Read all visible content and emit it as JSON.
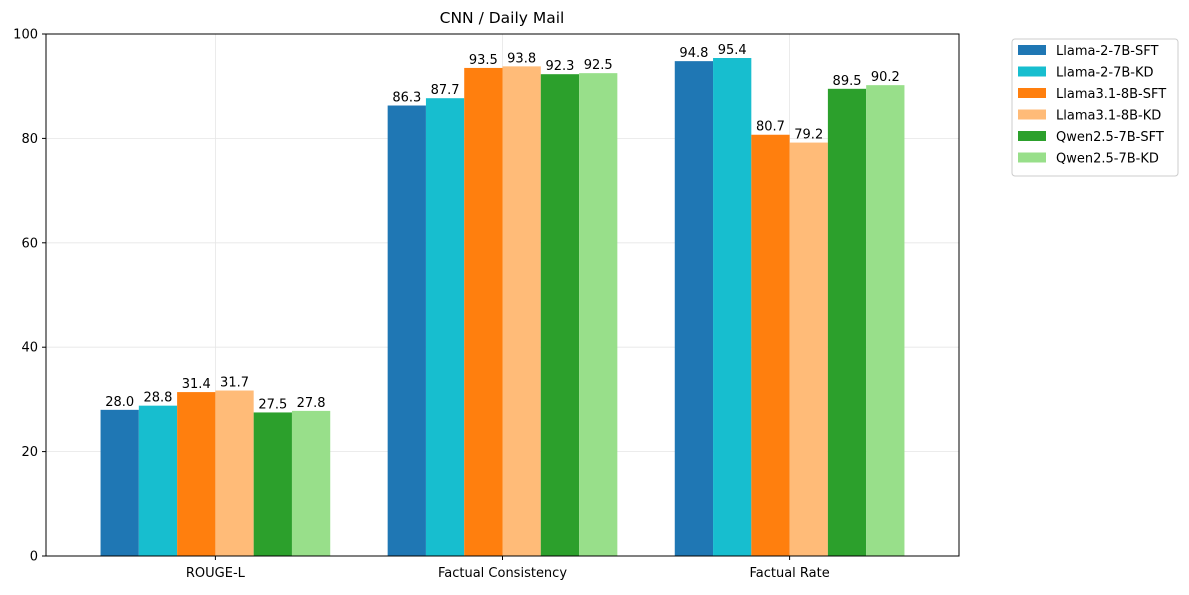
{
  "chart_data": {
    "type": "bar",
    "title": "CNN / Daily Mail",
    "xlabel": "",
    "ylabel": "",
    "categories": [
      "ROUGE-L",
      "Factual Consistency",
      "Factual Rate"
    ],
    "ylim": [
      0,
      100
    ],
    "yticks": [
      0,
      20,
      40,
      60,
      80,
      100
    ],
    "grid": true,
    "legend_position": "outside-top-right",
    "series": [
      {
        "name": "Llama-2-7B-SFT",
        "color": "#1f77b4",
        "values": [
          28.0,
          86.3,
          94.8
        ]
      },
      {
        "name": "Llama-2-7B-KD",
        "color": "#17becf",
        "values": [
          28.8,
          87.7,
          95.4
        ]
      },
      {
        "name": "Llama3.1-8B-SFT",
        "color": "#ff7f0e",
        "values": [
          31.4,
          93.5,
          80.7
        ]
      },
      {
        "name": "Llama3.1-8B-KD",
        "color": "#ffbb78",
        "values": [
          31.7,
          93.8,
          79.2
        ]
      },
      {
        "name": "Qwen2.5-7B-SFT",
        "color": "#2ca02c",
        "values": [
          27.5,
          92.3,
          89.5
        ]
      },
      {
        "name": "Qwen2.5-7B-KD",
        "color": "#98df8a",
        "values": [
          27.8,
          92.5,
          90.2
        ]
      }
    ]
  }
}
